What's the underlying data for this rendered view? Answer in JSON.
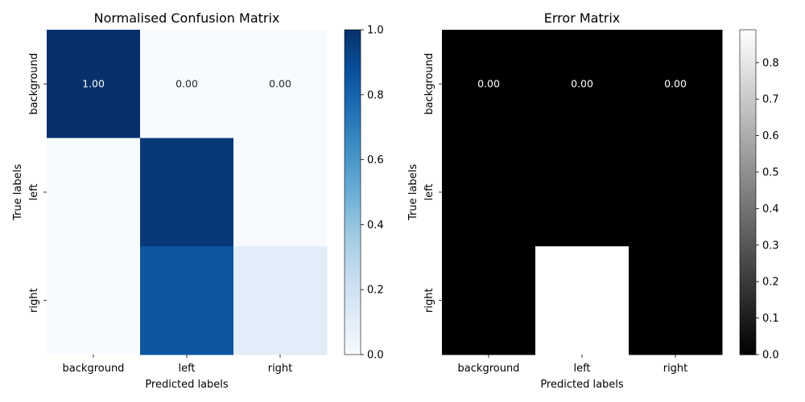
{
  "chart_data": [
    {
      "type": "heatmap",
      "title": "Normalised Confusion Matrix",
      "xlabel": "Predicted labels",
      "ylabel": "True labels",
      "x_categories": [
        "background",
        "left",
        "right"
      ],
      "y_categories": [
        "background",
        "left",
        "right"
      ],
      "values": [
        [
          1.0,
          0.0,
          0.0
        ],
        [
          0.0,
          0.97,
          0.0
        ],
        [
          0.0,
          0.85,
          0.11
        ]
      ],
      "cell_labels": [
        [
          "1.00",
          "0.00",
          "0.00"
        ],
        [
          "",
          "",
          ""
        ],
        [
          "",
          "",
          ""
        ]
      ],
      "colormap": "Blues",
      "vmin": 0.0,
      "vmax": 1.0,
      "colorbar_ticks": [
        "0.0",
        "0.2",
        "0.4",
        "0.6",
        "0.8",
        "1.0"
      ],
      "colorbar_tick_values": [
        0.0,
        0.2,
        0.4,
        0.6,
        0.8,
        1.0
      ]
    },
    {
      "type": "heatmap",
      "title": "Error Matrix",
      "xlabel": "Predicted labels",
      "ylabel": "True labels",
      "x_categories": [
        "background",
        "left",
        "right"
      ],
      "y_categories": [
        "background",
        "left",
        "right"
      ],
      "values": [
        [
          0.0,
          0.0,
          0.0
        ],
        [
          0.0,
          0.0,
          0.0
        ],
        [
          0.0,
          0.89,
          0.0
        ]
      ],
      "cell_labels": [
        [
          "0.00",
          "0.00",
          "0.00"
        ],
        [
          "",
          "",
          ""
        ],
        [
          "",
          "",
          ""
        ]
      ],
      "colormap": "gray",
      "vmin": 0.0,
      "vmax": 0.89,
      "colorbar_ticks": [
        "0.0",
        "0.1",
        "0.2",
        "0.3",
        "0.4",
        "0.5",
        "0.6",
        "0.7",
        "0.8"
      ],
      "colorbar_tick_values": [
        0.0,
        0.1,
        0.2,
        0.3,
        0.4,
        0.5,
        0.6,
        0.7,
        0.8
      ]
    }
  ]
}
